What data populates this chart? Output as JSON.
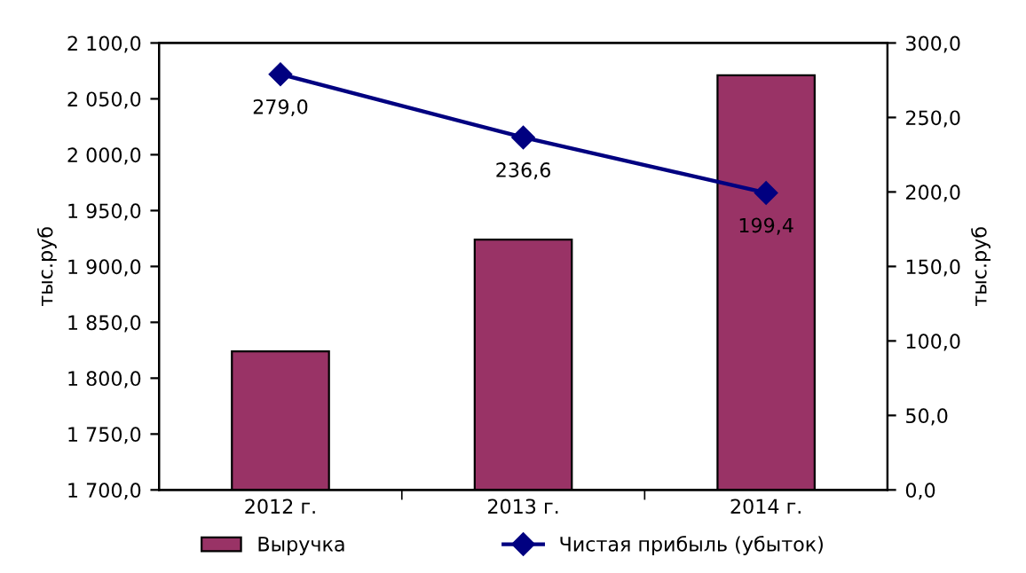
{
  "chart_data": {
    "type": "bar",
    "categories": [
      "2012 г.",
      "2013 г.",
      "2014 г."
    ],
    "ylabel": "тыс.руб",
    "y2label": "тыс.руб",
    "ylim": [
      1700,
      2100
    ],
    "yticks": [
      {
        "value": 1700,
        "label": "1 700,0"
      },
      {
        "value": 1750,
        "label": "1 750,0"
      },
      {
        "value": 1800,
        "label": "1 800,0"
      },
      {
        "value": 1850,
        "label": "1 850,0"
      },
      {
        "value": 1900,
        "label": "1 900,0"
      },
      {
        "value": 1950,
        "label": "1 950,0"
      },
      {
        "value": 2000,
        "label": "2 000,0"
      },
      {
        "value": 2050,
        "label": "2 050,0"
      },
      {
        "value": 2100,
        "label": "2 100,0"
      }
    ],
    "y2lim": [
      0,
      300
    ],
    "y2ticks": [
      {
        "value": 0,
        "label": "0,0"
      },
      {
        "value": 50,
        "label": "50,0"
      },
      {
        "value": 100,
        "label": "100,0"
      },
      {
        "value": 150,
        "label": "150,0"
      },
      {
        "value": 200,
        "label": "200,0"
      },
      {
        "value": 250,
        "label": "250,0"
      },
      {
        "value": 300,
        "label": "300,0"
      }
    ],
    "series": [
      {
        "name": "Выручка",
        "color": "#993366",
        "values": [
          1824,
          1924,
          2071
        ]
      },
      {
        "name": "Чистая прибыль (убыток)",
        "type": "line",
        "axis": "y2",
        "color": "#000080",
        "marker": "diamond",
        "values": [
          279.0,
          236.6,
          199.4
        ],
        "value_labels": [
          "279,0",
          "236,6",
          "199,4"
        ]
      }
    ],
    "legend": "bottom",
    "grid": false
  }
}
